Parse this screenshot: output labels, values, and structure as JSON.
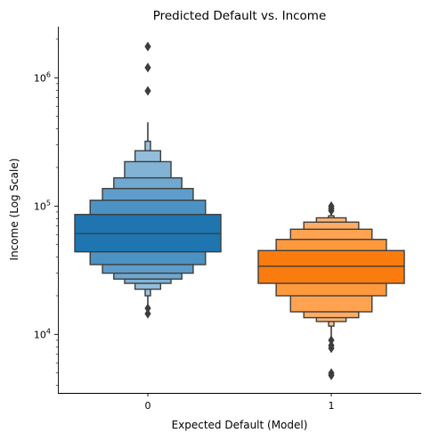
{
  "chart_data": {
    "type": "boxen",
    "title": "Predicted Default vs. Income",
    "xlabel": "Expected Default (Model)",
    "ylabel": "Income (Log Scale)",
    "y_scale": "log",
    "ylim": [
      3500,
      2500000
    ],
    "y_ticks": [
      {
        "value": 10000,
        "base": "10",
        "exp": "4"
      },
      {
        "value": 100000,
        "base": "10",
        "exp": "5"
      },
      {
        "value": 1000000,
        "base": "10",
        "exp": "6"
      }
    ],
    "categories": [
      "0",
      "1"
    ],
    "grid": false,
    "groups": [
      {
        "category": "0",
        "color": "#1f77b4",
        "median": 61000,
        "boxes": [
          [
            44000,
            86000
          ],
          [
            35000,
            111000
          ],
          [
            30000,
            137000
          ],
          [
            27000,
            166000
          ],
          [
            25000,
            222000
          ],
          [
            22500,
            270000
          ],
          [
            20000,
            320000
          ]
        ],
        "whisker": [
          16000,
          450000
        ],
        "outliers": [
          14500,
          16000,
          790000,
          1200000,
          1750000
        ]
      },
      {
        "category": "1",
        "color": "#ff7f0e",
        "median": 34000,
        "boxes": [
          [
            25000,
            45000
          ],
          [
            20000,
            55000
          ],
          [
            15000,
            66000
          ],
          [
            13500,
            75000
          ],
          [
            12600,
            81000
          ],
          [
            11600,
            84000
          ]
        ],
        "whisker": [
          9500,
          88000
        ],
        "outliers": [
          4800,
          5000,
          7800,
          8200,
          9000,
          92000,
          96000,
          100000
        ]
      }
    ]
  }
}
